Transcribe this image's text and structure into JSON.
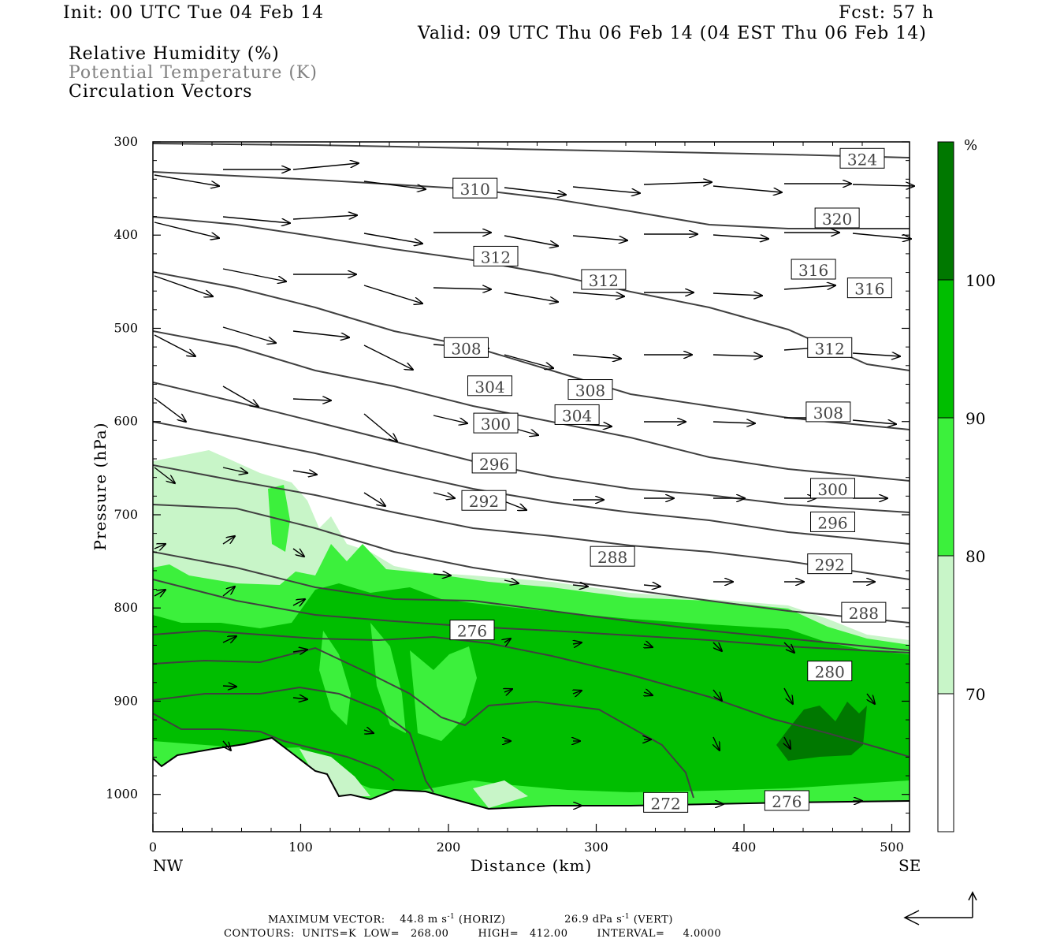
{
  "header": {
    "init": "Init: 00 UTC Tue 04 Feb 14",
    "fcst": "Fcst:   57 h",
    "valid": "Valid: 09 UTC Thu 06 Feb 14 (04 EST Thu 06 Feb 14)",
    "legend_lines": [
      "Relative Humidity (%)",
      "Potential Temperature (K)",
      "Circulation Vectors"
    ]
  },
  "footer": {
    "max_vector_label": "MAXIMUM VECTOR:",
    "horiz": "44.8 m s",
    "horiz_sup": "-1",
    "horiz_tag": "(HORIZ)",
    "vert": "26.9 dPa s",
    "vert_sup": "-1",
    "vert_tag": "(VERT)",
    "contours": "CONTOURS:  UNITS=K  LOW=   268.00        HIGH=   412.00        INTERVAL=     4.0000"
  },
  "chart_data": {
    "type": "cross-section",
    "xlabel": "Distance (km)",
    "ylabel": "Pressure (hPa)",
    "x_ticks": [
      0,
      100,
      200,
      300,
      400,
      500
    ],
    "y_ticks": [
      300,
      400,
      500,
      600,
      700,
      800,
      900,
      1000
    ],
    "xlim": [
      0,
      512
    ],
    "ylim": [
      300,
      1040
    ],
    "left_end_label": "NW",
    "right_end_label": "SE",
    "colorbar": {
      "unit": "%",
      "levels": [
        70,
        80,
        90,
        100
      ],
      "colors": [
        "#ffffff",
        "#c8f5c8",
        "#3cf03c",
        "#00be00",
        "#007800"
      ]
    },
    "theta_labels": [
      {
        "label": "324",
        "x": 480,
        "p": 318
      },
      {
        "label": "310",
        "x": 218,
        "p": 350
      },
      {
        "label": "320",
        "x": 463,
        "p": 382
      },
      {
        "label": "312",
        "x": 232,
        "p": 423
      },
      {
        "label": "312",
        "x": 305,
        "p": 448
      },
      {
        "label": "316",
        "x": 447,
        "p": 437
      },
      {
        "label": "316",
        "x": 485,
        "p": 457
      },
      {
        "label": "308",
        "x": 212,
        "p": 521
      },
      {
        "label": "312",
        "x": 458,
        "p": 521
      },
      {
        "label": "304",
        "x": 228,
        "p": 562
      },
      {
        "label": "308",
        "x": 296,
        "p": 566
      },
      {
        "label": "308",
        "x": 457,
        "p": 590
      },
      {
        "label": "304",
        "x": 287,
        "p": 593
      },
      {
        "label": "300",
        "x": 232,
        "p": 602
      },
      {
        "label": "296",
        "x": 231,
        "p": 645
      },
      {
        "label": "300",
        "x": 460,
        "p": 672
      },
      {
        "label": "292",
        "x": 224,
        "p": 685
      },
      {
        "label": "296",
        "x": 460,
        "p": 708
      },
      {
        "label": "288",
        "x": 311,
        "p": 745
      },
      {
        "label": "292",
        "x": 458,
        "p": 753
      },
      {
        "label": "288",
        "x": 481,
        "p": 805
      },
      {
        "label": "276",
        "x": 216,
        "p": 824
      },
      {
        "label": "280",
        "x": 458,
        "p": 868
      },
      {
        "label": "272",
        "x": 347,
        "p": 1009
      },
      {
        "label": "276",
        "x": 429,
        "p": 1007
      }
    ]
  }
}
